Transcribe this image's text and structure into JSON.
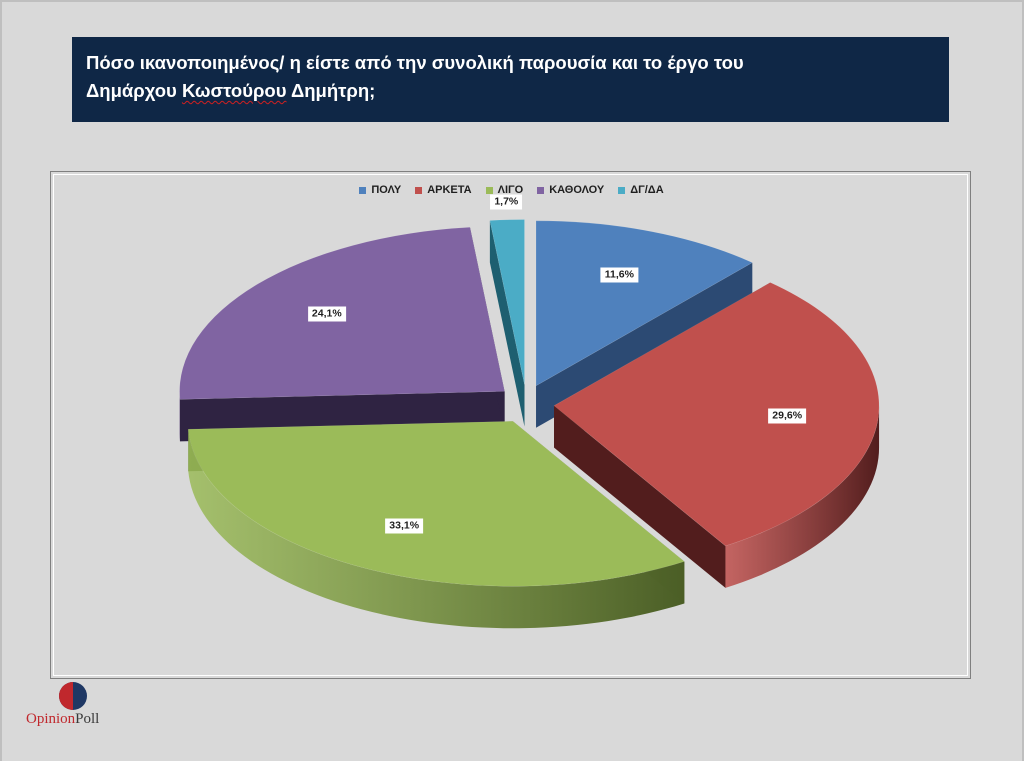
{
  "title": {
    "line1": "Πόσο ικανοποιημένος/ η είστε από την συνολική παρουσία και το έργο του",
    "line2_a": "Δημάρχου ",
    "line2_b": "Κωστούρου",
    "line2_c": " Δημήτρη;"
  },
  "chart_data": {
    "type": "pie",
    "title": "Πόσο ικανοποιημένος/ η είστε από την συνολική παρουσία και το έργο του Δημάρχου Κωστούρου Δημήτρη;",
    "three_d": true,
    "exploded": true,
    "legend_position": "top",
    "slices": [
      {
        "label": "ΠΟΛΥ",
        "value": 11.6,
        "display": "11,6%",
        "color": "#4f81bd",
        "side": "#2c4a73"
      },
      {
        "label": "ΑΡΚΕΤΑ",
        "value": 29.6,
        "display": "29,6%",
        "color": "#c0504d",
        "side": "#521d1d"
      },
      {
        "label": "ΛΙΓΟ",
        "value": 33.1,
        "display": "33,1%",
        "color": "#9bbb59",
        "side": "#4b5e26"
      },
      {
        "label": "ΚΑΘΟΛΟΥ",
        "value": 24.1,
        "display": "24,1%",
        "color": "#8064a2",
        "side": "#2f2342"
      },
      {
        "label": "ΔΓ/ΔΑ",
        "value": 1.7,
        "display": "1,7%",
        "color": "#4bacc6",
        "side": "#1e5f70"
      }
    ]
  },
  "logo": {
    "text_first": "Opinion",
    "text_second": "Poll"
  }
}
